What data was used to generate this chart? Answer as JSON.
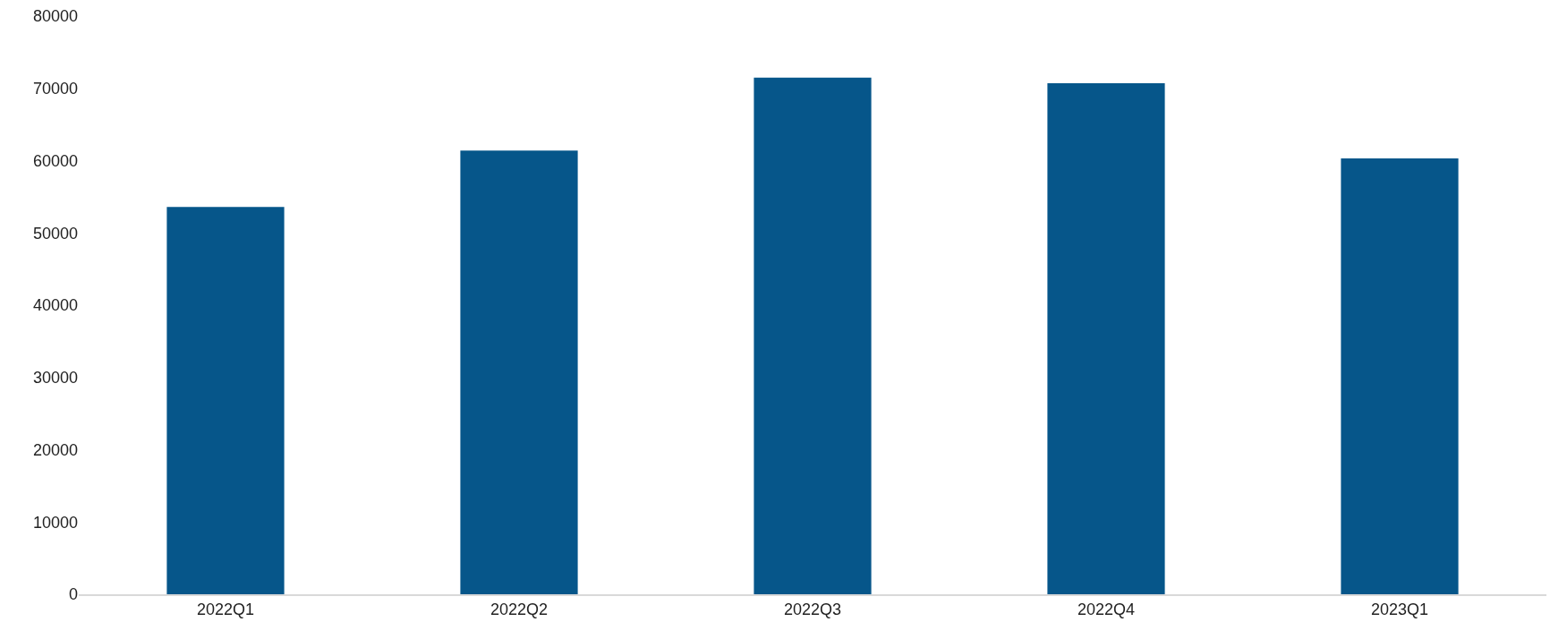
{
  "chart_data": {
    "type": "bar",
    "categories": [
      "2022Q1",
      "2022Q2",
      "2022Q3",
      "2022Q4",
      "2023Q1"
    ],
    "values": [
      53600,
      61400,
      71500,
      70700,
      60300
    ],
    "color": "#06568a",
    "ylim": [
      0,
      80000
    ],
    "yticks": [
      0,
      10000,
      20000,
      30000,
      40000,
      50000,
      60000,
      70000,
      80000
    ],
    "grid": false,
    "legend": false
  }
}
